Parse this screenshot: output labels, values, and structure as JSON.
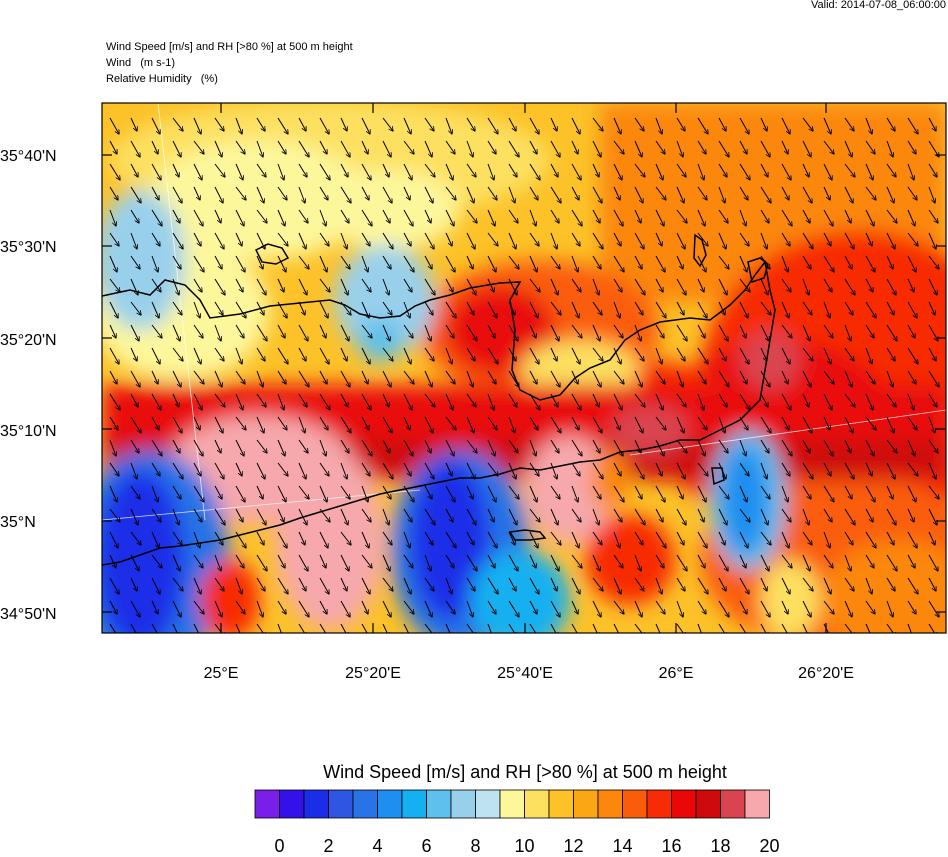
{
  "valid_time": "Valid: 2014-07-08_06:00:00",
  "header": {
    "line1": "Wind Speed [m/s] and RH [>80 %] at 500 m height",
    "line2": "Wind   (m s-1)",
    "line3": "Relative Humidity   (%)"
  },
  "map": {
    "y_axis_labels": [
      "35°40'N",
      "35°30'N",
      "35°20'N",
      "35°10'N",
      "35°N",
      "34°50'N"
    ],
    "x_axis_labels": [
      "25°E",
      "25°20'E",
      "25°40'E",
      "26°E",
      "26°20'E"
    ],
    "wind_direction": "north-northwest (arrows point south-southeast)"
  },
  "colorbar": {
    "title": "Wind Speed [m/s] and RH [>80 %] at 500 m height",
    "tick_labels": [
      "0",
      "2",
      "4",
      "6",
      "8",
      "10",
      "12",
      "14",
      "16",
      "18",
      "20"
    ],
    "colors": [
      "#7a1fe8",
      "#3411e8",
      "#1a2ee8",
      "#2e56e0",
      "#2873e6",
      "#1e8ef0",
      "#14b0f0",
      "#5ec0ec",
      "#98d0ec",
      "#bfe2f0",
      "#fdf79c",
      "#fde060",
      "#fcc228",
      "#fba714",
      "#fb870c",
      "#fa5d0a",
      "#f72c05",
      "#e90707",
      "#cf0a0c",
      "#d94450",
      "#f6a8ac"
    ]
  }
}
